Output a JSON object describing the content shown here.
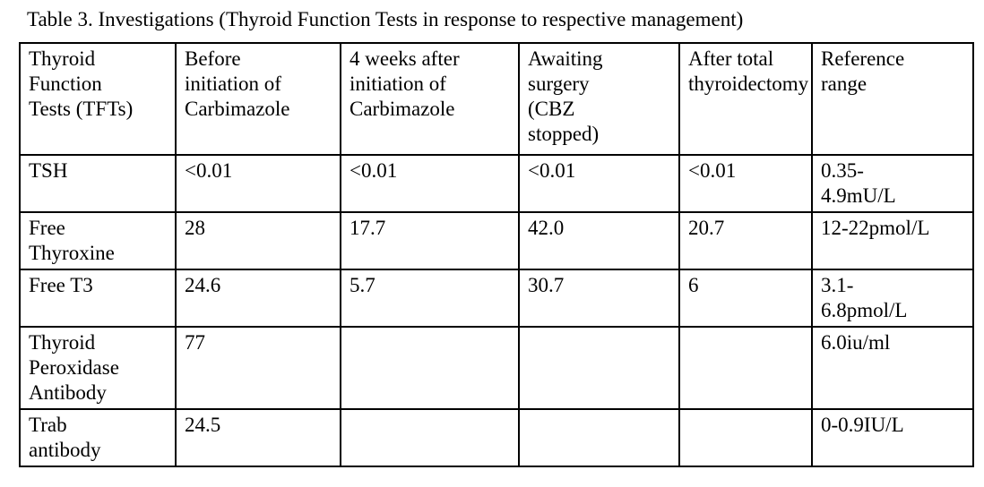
{
  "chart_data": {
    "type": "table",
    "title": "Table 3. Investigations (Thyroid Function Tests in response to respective management)",
    "columns": [
      "Thyroid\nFunction\nTests (TFTs)",
      "Before\ninitiation of\nCarbimazole",
      "4 weeks after\ninitiation of\nCarbimazole",
      "Awaiting\nsurgery\n(CBZ\nstopped)",
      "After total\nthyroidectomy",
      "Reference\nrange"
    ],
    "rows": [
      [
        "TSH",
        "<0.01",
        "<0.01",
        "<0.01",
        "<0.01",
        "0.35-\n4.9mU/L"
      ],
      [
        "Free\nThyroxine",
        "28",
        "17.7",
        "42.0",
        "20.7",
        "12-22pmol/L"
      ],
      [
        "Free T3",
        "24.6",
        "5.7",
        "30.7",
        "6",
        "3.1-\n6.8pmol/L"
      ],
      [
        "Thyroid\nPeroxidase\nAntibody",
        "77",
        "",
        "",
        "",
        "6.0iu/ml"
      ],
      [
        "Trab\nantibody",
        "24.5",
        "",
        "",
        "",
        "0-0.9IU/L"
      ]
    ]
  },
  "colors": {
    "text": "#000000",
    "background": "#ffffff",
    "border": "#000000"
  }
}
